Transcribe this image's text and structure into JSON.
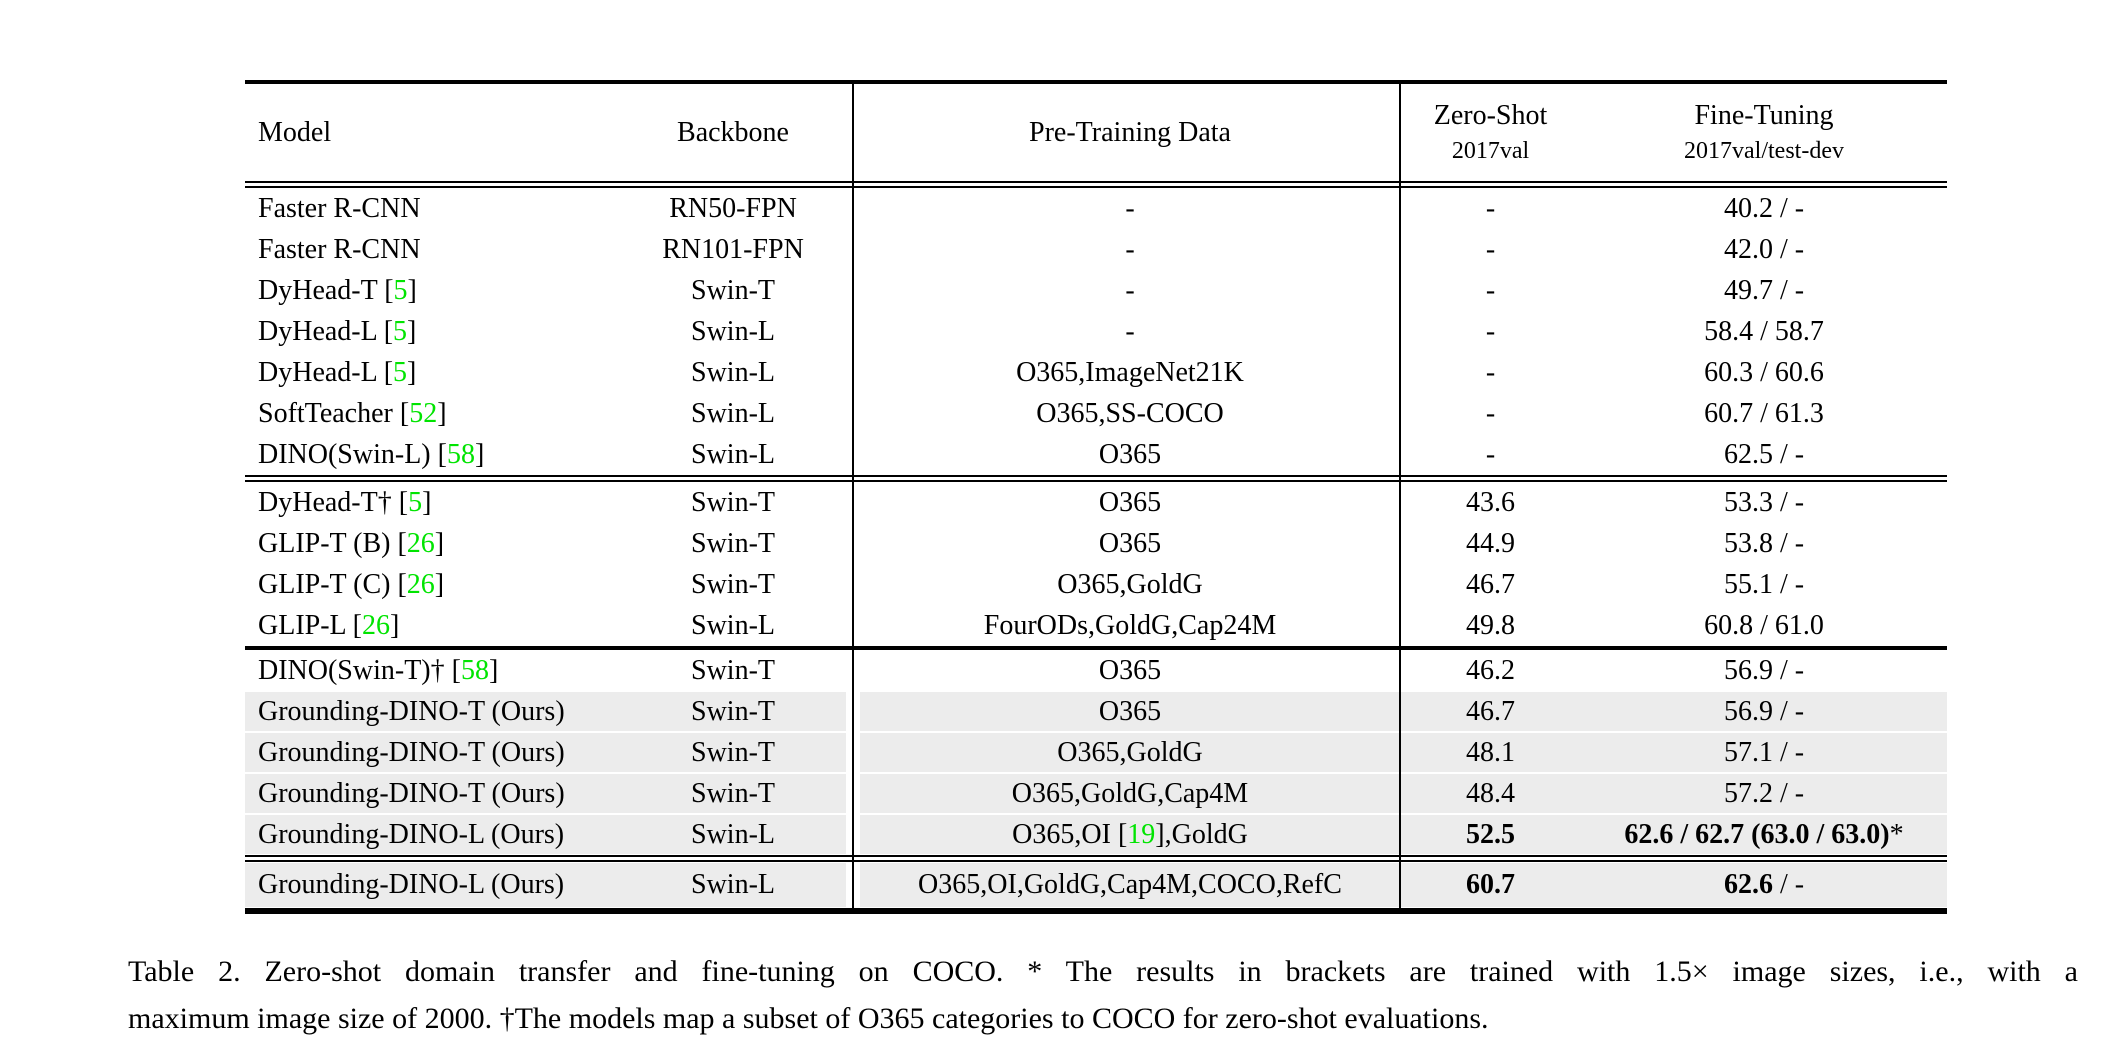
{
  "colors": {
    "citation_green": "#00e400",
    "row_highlight": "#ececec",
    "rule_black": "#000000"
  },
  "table": {
    "header": {
      "model": "Model",
      "backbone": "Backbone",
      "pretrain": "Pre-Training Data",
      "zeroshot_title": "Zero-Shot",
      "zeroshot_sub": "2017val",
      "finetune_title": "Fine-Tuning",
      "finetune_sub": "2017val/test-dev"
    },
    "groups": [
      {
        "rows": [
          {
            "model": "Faster R-CNN",
            "cite": "",
            "backbone": "RN50-FPN",
            "pt_pre": "-",
            "pt_cite": "",
            "pt_post": "",
            "zs": "-",
            "zs_bold": false,
            "ft_bold": "",
            "ft_reg": "40.2 / -",
            "highlight": false
          },
          {
            "model": "Faster R-CNN",
            "cite": "",
            "backbone": "RN101-FPN",
            "pt_pre": "-",
            "pt_cite": "",
            "pt_post": "",
            "zs": "-",
            "zs_bold": false,
            "ft_bold": "",
            "ft_reg": "42.0 / -",
            "highlight": false
          },
          {
            "model": "DyHead-T",
            "cite": "5",
            "backbone": "Swin-T",
            "pt_pre": "-",
            "pt_cite": "",
            "pt_post": "",
            "zs": "-",
            "zs_bold": false,
            "ft_bold": "",
            "ft_reg": "49.7 / -",
            "highlight": false
          },
          {
            "model": "DyHead-L",
            "cite": "5",
            "backbone": "Swin-L",
            "pt_pre": "-",
            "pt_cite": "",
            "pt_post": "",
            "zs": "-",
            "zs_bold": false,
            "ft_bold": "",
            "ft_reg": "58.4 / 58.7",
            "highlight": false
          },
          {
            "model": "DyHead-L",
            "cite": "5",
            "backbone": "Swin-L",
            "pt_pre": "O365,ImageNet21K",
            "pt_cite": "",
            "pt_post": "",
            "zs": "-",
            "zs_bold": false,
            "ft_bold": "",
            "ft_reg": "60.3 / 60.6",
            "highlight": false
          },
          {
            "model": "SoftTeacher",
            "cite": "52",
            "backbone": "Swin-L",
            "pt_pre": "O365,SS-COCO",
            "pt_cite": "",
            "pt_post": "",
            "zs": "-",
            "zs_bold": false,
            "ft_bold": "",
            "ft_reg": "60.7 / 61.3",
            "highlight": false
          },
          {
            "model": "DINO(Swin-L)",
            "cite": "58",
            "backbone": "Swin-L",
            "pt_pre": "O365",
            "pt_cite": "",
            "pt_post": "",
            "zs": "-",
            "zs_bold": false,
            "ft_bold": "",
            "ft_reg": "62.5 / -",
            "highlight": false
          }
        ]
      },
      {
        "rows": [
          {
            "model": "DyHead-T†",
            "cite": "5",
            "backbone": "Swin-T",
            "pt_pre": "O365",
            "pt_cite": "",
            "pt_post": "",
            "zs": "43.6",
            "zs_bold": false,
            "ft_bold": "",
            "ft_reg": "53.3 / -",
            "highlight": false
          },
          {
            "model": "GLIP-T (B)",
            "cite": "26",
            "backbone": "Swin-T",
            "pt_pre": "O365",
            "pt_cite": "",
            "pt_post": "",
            "zs": "44.9",
            "zs_bold": false,
            "ft_bold": "",
            "ft_reg": "53.8 / -",
            "highlight": false
          },
          {
            "model": "GLIP-T (C)",
            "cite": "26",
            "backbone": "Swin-T",
            "pt_pre": "O365,GoldG",
            "pt_cite": "",
            "pt_post": "",
            "zs": "46.7",
            "zs_bold": false,
            "ft_bold": "",
            "ft_reg": "55.1 / -",
            "highlight": false
          },
          {
            "model": "GLIP-L",
            "cite": "26",
            "backbone": "Swin-L",
            "pt_pre": "FourODs,GoldG,Cap24M",
            "pt_cite": "",
            "pt_post": "",
            "zs": "49.8",
            "zs_bold": false,
            "ft_bold": "",
            "ft_reg": "60.8 / 61.0",
            "highlight": false
          }
        ]
      },
      {
        "rows": [
          {
            "model": "DINO(Swin-T)†",
            "cite": "58",
            "backbone": "Swin-T",
            "pt_pre": "O365",
            "pt_cite": "",
            "pt_post": "",
            "zs": "46.2",
            "zs_bold": false,
            "ft_bold": "",
            "ft_reg": "56.9 / -",
            "highlight": false
          },
          {
            "model": "Grounding-DINO-T (Ours)",
            "cite": "",
            "backbone": "Swin-T",
            "pt_pre": "O365",
            "pt_cite": "",
            "pt_post": "",
            "zs": "46.7",
            "zs_bold": false,
            "ft_bold": "",
            "ft_reg": "56.9 / -",
            "highlight": true
          },
          {
            "model": "Grounding-DINO-T (Ours)",
            "cite": "",
            "backbone": "Swin-T",
            "pt_pre": "O365,GoldG",
            "pt_cite": "",
            "pt_post": "",
            "zs": "48.1",
            "zs_bold": false,
            "ft_bold": "",
            "ft_reg": "57.1 / -",
            "highlight": true
          },
          {
            "model": "Grounding-DINO-T (Ours)",
            "cite": "",
            "backbone": "Swin-T",
            "pt_pre": "O365,GoldG,Cap4M",
            "pt_cite": "",
            "pt_post": "",
            "zs": "48.4",
            "zs_bold": false,
            "ft_bold": "",
            "ft_reg": "57.2 / -",
            "highlight": true
          },
          {
            "model": "Grounding-DINO-L (Ours)",
            "cite": "",
            "backbone": "Swin-L",
            "pt_pre": "O365,OI ",
            "pt_cite": "19",
            "pt_post": ",GoldG",
            "zs": "52.5",
            "zs_bold": true,
            "ft_bold": "62.6 / 62.7 (63.0 / 63.0)",
            "ft_reg": "*",
            "highlight": true
          }
        ]
      },
      {
        "rows": [
          {
            "model": "Grounding-DINO-L (Ours)",
            "cite": "",
            "backbone": "Swin-L",
            "pt_pre": "O365,OI,GoldG,Cap4M,COCO,RefC",
            "pt_cite": "",
            "pt_post": "",
            "zs": "60.7",
            "zs_bold": true,
            "ft_bold": "62.6",
            "ft_reg": " / -",
            "highlight": true
          }
        ]
      }
    ]
  },
  "caption": {
    "line1": "Table 2.  Zero-shot domain transfer and fine-tuning on COCO. * The results in brackets are trained with 1.5× image sizes, i.e., with a",
    "line2": "maximum image size of 2000. †The models map a subset of O365 categories to COCO for zero-shot evaluations."
  }
}
